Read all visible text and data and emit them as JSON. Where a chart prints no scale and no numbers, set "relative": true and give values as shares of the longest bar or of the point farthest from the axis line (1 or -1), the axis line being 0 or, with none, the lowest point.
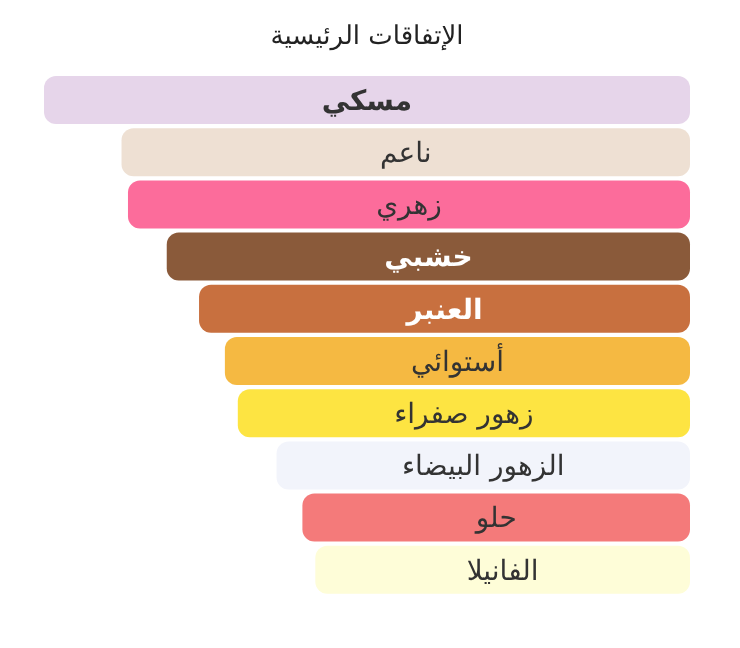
{
  "chart_data": {
    "type": "bar",
    "orientation": "horizontal",
    "relative": true,
    "title": "الإتفاقات الرئيسية",
    "categories": [
      "مسكي",
      "ناعم",
      "زهري",
      "خشبي",
      "العنبر",
      "أستوائي",
      "زهور صفراء",
      "الزهور البيضاء",
      "حلو",
      "الفانيلا"
    ],
    "values": [
      1,
      0.88,
      0.87,
      0.81,
      0.76,
      0.72,
      0.7,
      0.64,
      0.6,
      0.58
    ],
    "colors": [
      "#e6d5ea",
      "#eee0d3",
      "#fc6c9b",
      "#8a5a3a",
      "#c8703f",
      "#f5b942",
      "#fde442",
      "#f2f4fb",
      "#f47a7a",
      "#fefdd8"
    ]
  }
}
